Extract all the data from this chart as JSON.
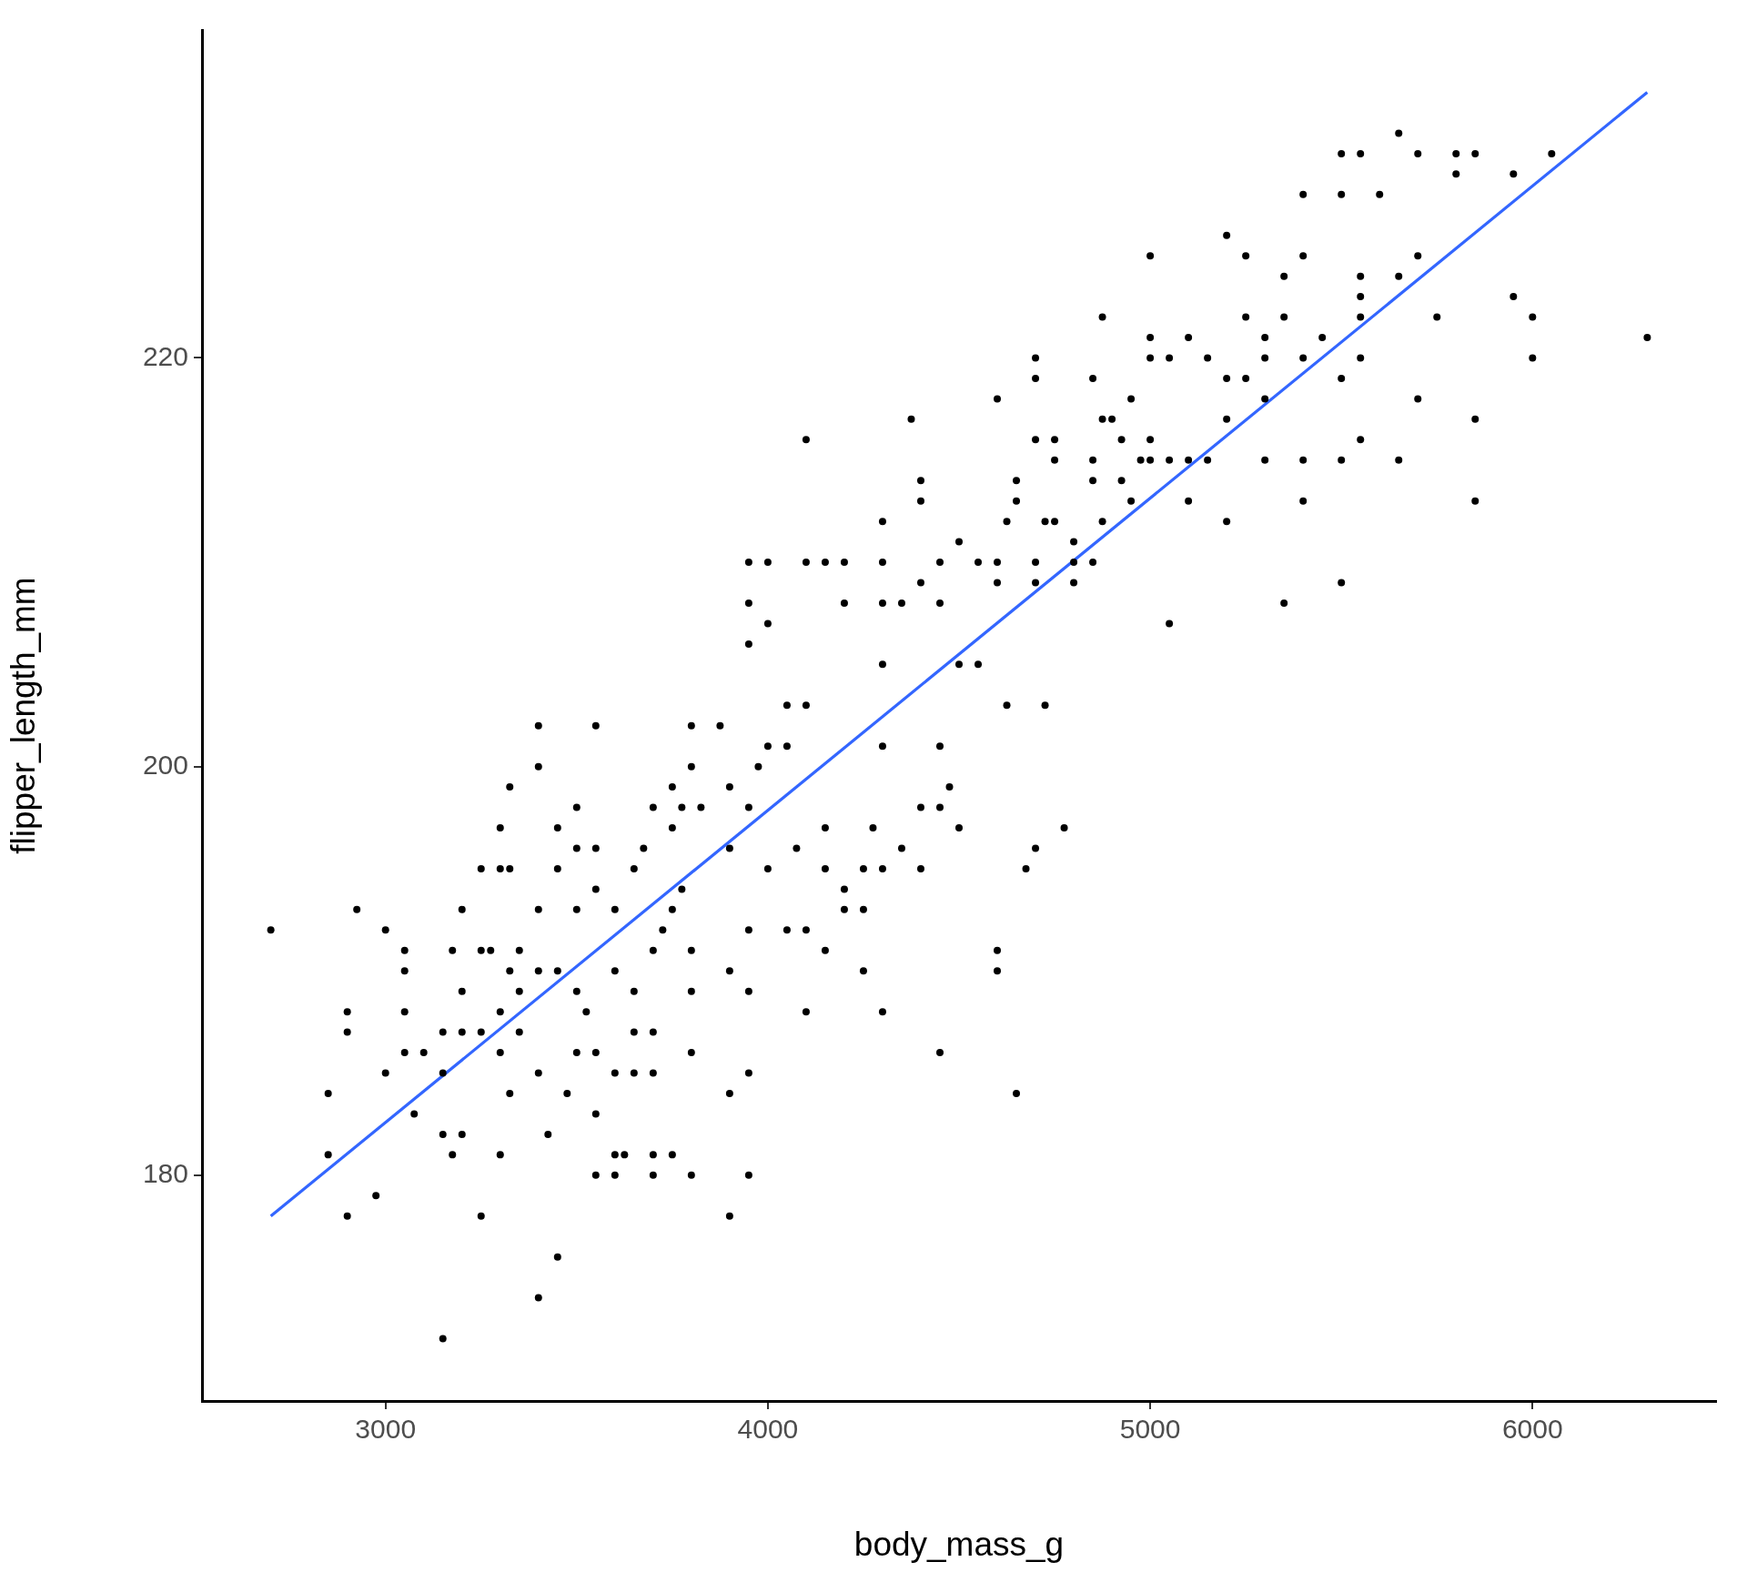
{
  "chart_data": {
    "type": "scatter",
    "xlabel": "body_mass_g",
    "ylabel": "flipper_length_mm",
    "xlim": [
      2520,
      6480
    ],
    "ylim": [
      168.95,
      236.05
    ],
    "xticks": [
      3000,
      4000,
      5000,
      6000
    ],
    "yticks": [
      180,
      200,
      220
    ],
    "grid": false,
    "legend": false,
    "marker": "circle",
    "series": [
      {
        "color": "#000000",
        "x": [
          2700,
          2850,
          2850,
          2900,
          2900,
          2900,
          2925,
          2975,
          3000,
          3000,
          3050,
          3050,
          3050,
          3050,
          3075,
          3100,
          3150,
          3150,
          3150,
          3150,
          3175,
          3175,
          3200,
          3200,
          3200,
          3200,
          3250,
          3250,
          3250,
          3250,
          3275,
          3300,
          3300,
          3300,
          3300,
          3300,
          3325,
          3325,
          3325,
          3325,
          3350,
          3350,
          3350,
          3400,
          3400,
          3400,
          3400,
          3400,
          3400,
          3425,
          3450,
          3450,
          3450,
          3450,
          3475,
          3500,
          3500,
          3500,
          3500,
          3500,
          3525,
          3550,
          3550,
          3550,
          3550,
          3550,
          3550,
          3600,
          3600,
          3600,
          3600,
          3600,
          3625,
          3650,
          3650,
          3650,
          3650,
          3675,
          3700,
          3700,
          3700,
          3700,
          3700,
          3700,
          3725,
          3750,
          3750,
          3750,
          3750,
          3775,
          3775,
          3800,
          3800,
          3800,
          3800,
          3800,
          3800,
          3825,
          3875,
          3900,
          3900,
          3900,
          3900,
          3900,
          3950,
          3950,
          3950,
          3950,
          3950,
          3950,
          3950,
          3950,
          3975,
          4000,
          4000,
          4000,
          4000,
          4050,
          4050,
          4050,
          4075,
          4100,
          4100,
          4100,
          4100,
          4100,
          4150,
          4150,
          4150,
          4150,
          4200,
          4200,
          4200,
          4200,
          4250,
          4250,
          4250,
          4275,
          4300,
          4300,
          4300,
          4300,
          4300,
          4300,
          4300,
          4350,
          4350,
          4375,
          4400,
          4400,
          4400,
          4400,
          4400,
          4450,
          4450,
          4450,
          4450,
          4450,
          4475,
          4500,
          4500,
          4500,
          4550,
          4550,
          4600,
          4600,
          4600,
          4600,
          4600,
          4625,
          4625,
          4650,
          4650,
          4650,
          4675,
          4700,
          4700,
          4700,
          4700,
          4700,
          4700,
          4725,
          4725,
          4750,
          4750,
          4750,
          4775,
          4800,
          4800,
          4800,
          4850,
          4850,
          4850,
          4850,
          4875,
          4875,
          4875,
          4900,
          4925,
          4925,
          4950,
          4950,
          4975,
          5000,
          5000,
          5000,
          5000,
          5000,
          5050,
          5050,
          5050,
          5100,
          5100,
          5100,
          5150,
          5150,
          5200,
          5200,
          5200,
          5200,
          5250,
          5250,
          5250,
          5300,
          5300,
          5300,
          5300,
          5350,
          5350,
          5350,
          5400,
          5400,
          5400,
          5400,
          5400,
          5450,
          5500,
          5500,
          5500,
          5500,
          5500,
          5550,
          5550,
          5550,
          5550,
          5550,
          5550,
          5600,
          5650,
          5650,
          5650,
          5700,
          5700,
          5700,
          5750,
          5800,
          5800,
          5850,
          5850,
          5850,
          5950,
          5950,
          6000,
          6000,
          6050,
          6300
        ],
        "values": [
          192,
          184,
          181,
          178,
          187,
          188,
          193,
          179,
          185,
          192,
          186,
          188,
          190,
          191,
          183,
          186,
          172,
          182,
          185,
          187,
          181,
          191,
          182,
          187,
          189,
          193,
          178,
          187,
          191,
          195,
          191,
          181,
          186,
          188,
          195,
          197,
          184,
          190,
          195,
          199,
          187,
          189,
          191,
          174,
          185,
          190,
          193,
          200,
          202,
          182,
          176,
          190,
          195,
          197,
          184,
          186,
          189,
          193,
          196,
          198,
          188,
          180,
          183,
          186,
          194,
          196,
          202,
          180,
          181,
          185,
          190,
          193,
          181,
          185,
          187,
          189,
          195,
          196,
          180,
          181,
          185,
          187,
          191,
          198,
          192,
          181,
          193,
          197,
          199,
          194,
          198,
          180,
          186,
          189,
          191,
          200,
          202,
          198,
          202,
          178,
          184,
          190,
          196,
          199,
          180,
          185,
          189,
          192,
          198,
          206,
          208,
          210,
          200,
          195,
          201,
          207,
          210,
          192,
          201,
          203,
          196,
          188,
          192,
          203,
          210,
          216,
          191,
          195,
          197,
          210,
          193,
          194,
          208,
          210,
          190,
          193,
          195,
          197,
          188,
          195,
          201,
          205,
          208,
          210,
          212,
          196,
          208,
          217,
          195,
          198,
          209,
          213,
          214,
          186,
          198,
          201,
          208,
          210,
          199,
          197,
          205,
          211,
          205,
          210,
          190,
          191,
          209,
          210,
          218,
          203,
          212,
          184,
          213,
          214,
          195,
          196,
          209,
          210,
          216,
          219,
          220,
          203,
          212,
          212,
          215,
          216,
          197,
          209,
          210,
          211,
          210,
          214,
          215,
          219,
          212,
          217,
          222,
          217,
          214,
          216,
          213,
          218,
          215,
          215,
          216,
          220,
          221,
          225,
          207,
          215,
          220,
          213,
          215,
          221,
          215,
          220,
          212,
          217,
          219,
          226,
          219,
          222,
          225,
          215,
          218,
          220,
          221,
          208,
          222,
          224,
          213,
          215,
          220,
          225,
          228,
          221,
          209,
          215,
          219,
          228,
          230,
          216,
          220,
          222,
          223,
          224,
          230,
          228,
          215,
          224,
          231,
          218,
          225,
          230,
          222,
          229,
          230,
          213,
          217,
          230,
          223,
          229,
          220,
          222,
          230,
          221
        ]
      },
      {
        "type": "line",
        "color": "#3366ff",
        "line_style": "solid",
        "marker": "none",
        "x": [
          2700,
          6300
        ],
        "values": [
          178.0,
          233.0
        ]
      }
    ]
  }
}
